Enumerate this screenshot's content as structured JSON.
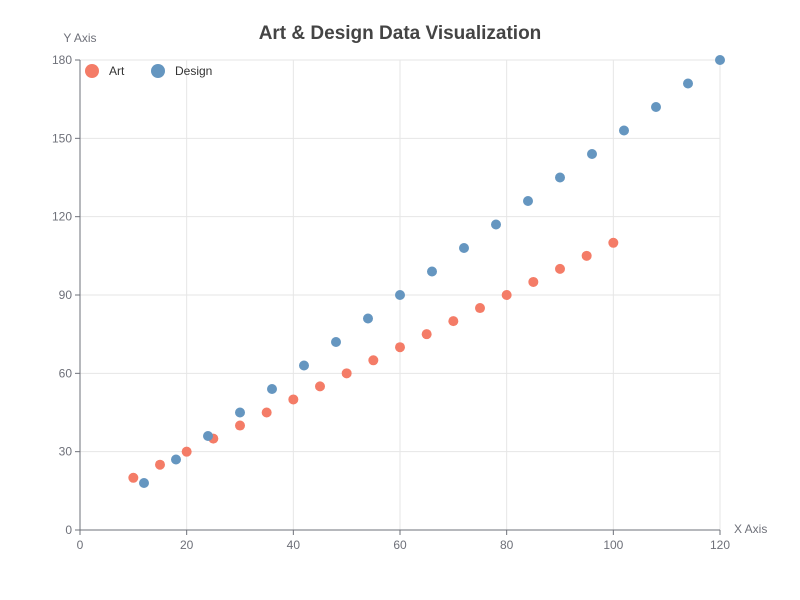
{
  "chart_data": {
    "type": "scatter",
    "title": "Art & Design Data Visualization",
    "xlabel": "X Axis",
    "ylabel": "Y Axis",
    "xlim": [
      0,
      120
    ],
    "ylim": [
      0,
      180
    ],
    "x_ticks": [
      0,
      20,
      40,
      60,
      80,
      100,
      120
    ],
    "y_ticks": [
      0,
      30,
      60,
      90,
      120,
      150,
      180
    ],
    "grid": true,
    "legend_position": "top-left",
    "series": [
      {
        "name": "Art",
        "color": "#f47c67",
        "points": [
          [
            10,
            20
          ],
          [
            15,
            25
          ],
          [
            20,
            30
          ],
          [
            25,
            35
          ],
          [
            30,
            40
          ],
          [
            35,
            45
          ],
          [
            40,
            50
          ],
          [
            45,
            55
          ],
          [
            50,
            60
          ],
          [
            55,
            65
          ],
          [
            60,
            70
          ],
          [
            65,
            75
          ],
          [
            70,
            80
          ],
          [
            75,
            85
          ],
          [
            80,
            90
          ],
          [
            85,
            95
          ],
          [
            90,
            100
          ],
          [
            95,
            105
          ],
          [
            100,
            110
          ]
        ]
      },
      {
        "name": "Design",
        "color": "#6596c0",
        "points": [
          [
            12,
            18
          ],
          [
            18,
            27
          ],
          [
            24,
            36
          ],
          [
            30,
            45
          ],
          [
            36,
            54
          ],
          [
            42,
            63
          ],
          [
            48,
            72
          ],
          [
            54,
            81
          ],
          [
            60,
            90
          ],
          [
            66,
            99
          ],
          [
            72,
            108
          ],
          [
            78,
            117
          ],
          [
            84,
            126
          ],
          [
            90,
            135
          ],
          [
            96,
            144
          ],
          [
            102,
            153
          ],
          [
            108,
            162
          ],
          [
            114,
            171
          ],
          [
            120,
            180
          ]
        ]
      }
    ]
  }
}
